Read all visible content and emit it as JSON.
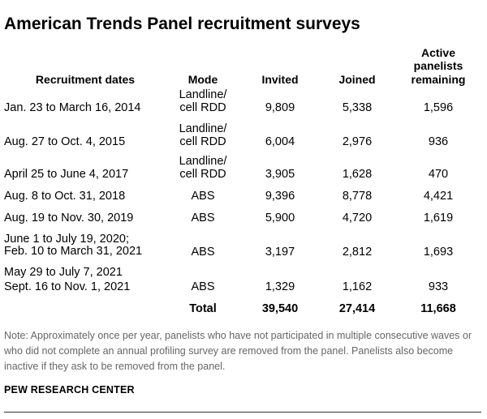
{
  "title": "American Trends Panel recruitment surveys",
  "headers": {
    "dates": "Recruitment dates",
    "mode": "Mode",
    "invited": "Invited",
    "joined": "Joined",
    "active_line1": "Active",
    "active_line2": "panelists",
    "active_line3": "remaining"
  },
  "rows": [
    {
      "date1": "Jan. 23 to March 16, 2014",
      "date2": "",
      "mode1": "Landline/",
      "mode2": "cell RDD",
      "invited": "9,809",
      "joined": "5,338",
      "active": "1,596"
    },
    {
      "date1": "Aug. 27 to Oct. 4, 2015",
      "date2": "",
      "mode1": "Landline/",
      "mode2": "cell RDD",
      "invited": "6,004",
      "joined": "2,976",
      "active": "936"
    },
    {
      "date1": "April 25 to June 4, 2017",
      "date2": "",
      "mode1": "Landline/",
      "mode2": "cell RDD",
      "invited": "3,905",
      "joined": "1,628",
      "active": "470"
    },
    {
      "date1": "Aug. 8 to Oct. 31, 2018",
      "date2": "",
      "mode1": "ABS",
      "mode2": "",
      "invited": "9,396",
      "joined": "8,778",
      "active": "4,421"
    },
    {
      "date1": "Aug. 19 to Nov. 30, 2019",
      "date2": "",
      "mode1": "ABS",
      "mode2": "",
      "invited": "5,900",
      "joined": "4,720",
      "active": "1,619"
    },
    {
      "date1": "June 1 to July 19, 2020;",
      "date2": "Feb. 10 to March 31, 2021",
      "mode1": "ABS",
      "mode2": "",
      "invited": "3,197",
      "joined": "2,812",
      "active": "1,693"
    },
    {
      "date1": "May 29 to July 7, 2021",
      "date2": "Sept. 16 to Nov. 1, 2021",
      "mode1": "ABS",
      "mode2": "",
      "invited": "1,329",
      "joined": "1,162",
      "active": "933"
    }
  ],
  "total": {
    "label": "Total",
    "invited": "39,540",
    "joined": "27,414",
    "active": "11,668"
  },
  "note": "Note: Approximately once per year, panelists who have not participated in multiple consecutive waves or who did not complete an annual profiling survey are removed from the panel. Panelists also become inactive if they ask to be removed from the panel.",
  "source": "PEW RESEARCH CENTER"
}
